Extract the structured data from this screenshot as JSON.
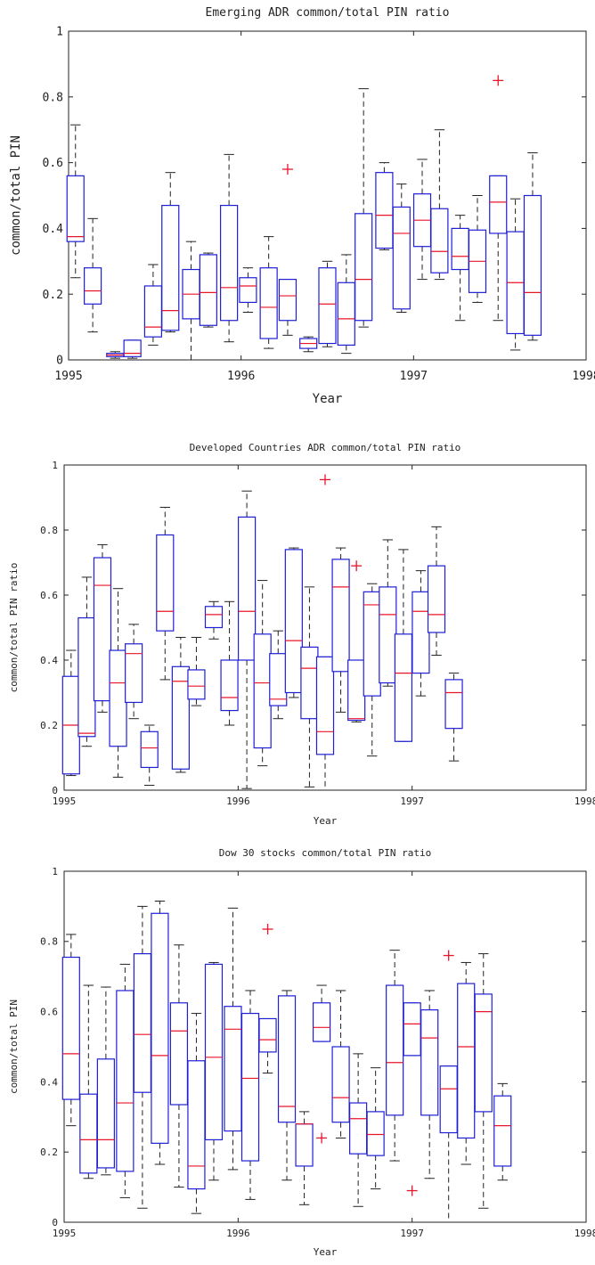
{
  "chart_data": [
    {
      "type": "box",
      "title": "Emerging ADR common/total PIN ratio",
      "xlabel": "Year",
      "ylabel": "common/total PIN",
      "xlim": [
        1995,
        1998
      ],
      "ylim": [
        0,
        1
      ],
      "x_ticks": [
        "1995",
        "1996",
        "1997",
        "1998"
      ],
      "y_ticks": [
        "0",
        "0.2",
        "0.4",
        "0.6",
        "0.8",
        "1"
      ],
      "grid": false,
      "colors": {
        "box": "#1f1fd6",
        "median": "#e8162b",
        "outlier": "#e8162b",
        "whisker": "#222222"
      },
      "boxes": [
        {
          "x": 1995.04,
          "lo": 0.25,
          "q1": 0.36,
          "med": 0.375,
          "q3": 0.56,
          "hi": 0.715
        },
        {
          "x": 1995.14,
          "lo": 0.085,
          "q1": 0.17,
          "med": 0.21,
          "q3": 0.28,
          "hi": 0.43
        },
        {
          "x": 1995.27,
          "lo": 0.005,
          "q1": 0.01,
          "med": 0.015,
          "q3": 0.02,
          "hi": 0.025
        },
        {
          "x": 1995.37,
          "lo": 0.005,
          "q1": 0.01,
          "med": 0.02,
          "q3": 0.06,
          "hi": 0.06
        },
        {
          "x": 1995.49,
          "lo": 0.045,
          "q1": 0.07,
          "med": 0.1,
          "q3": 0.225,
          "hi": 0.29
        },
        {
          "x": 1995.59,
          "lo": 0.085,
          "q1": 0.09,
          "med": 0.15,
          "q3": 0.47,
          "hi": 0.57
        },
        {
          "x": 1995.71,
          "lo": 0.0,
          "q1": 0.125,
          "med": 0.2,
          "q3": 0.275,
          "hi": 0.36
        },
        {
          "x": 1995.81,
          "lo": 0.1,
          "q1": 0.105,
          "med": 0.205,
          "q3": 0.32,
          "hi": 0.325
        },
        {
          "x": 1995.93,
          "lo": 0.055,
          "q1": 0.12,
          "med": 0.22,
          "q3": 0.47,
          "hi": 0.625
        },
        {
          "x": 1996.04,
          "lo": 0.145,
          "q1": 0.175,
          "med": 0.225,
          "q3": 0.25,
          "hi": 0.28
        },
        {
          "x": 1996.16,
          "lo": 0.035,
          "q1": 0.065,
          "med": 0.16,
          "q3": 0.28,
          "hi": 0.375
        },
        {
          "x": 1996.27,
          "lo": 0.075,
          "q1": 0.12,
          "med": 0.195,
          "q3": 0.245,
          "hi": 0.245,
          "outliers": [
            0.58
          ]
        },
        {
          "x": 1996.39,
          "lo": 0.025,
          "q1": 0.035,
          "med": 0.05,
          "q3": 0.065,
          "hi": 0.07
        },
        {
          "x": 1996.5,
          "lo": 0.04,
          "q1": 0.05,
          "med": 0.17,
          "q3": 0.28,
          "hi": 0.3
        },
        {
          "x": 1996.61,
          "lo": 0.02,
          "q1": 0.045,
          "med": 0.125,
          "q3": 0.235,
          "hi": 0.32
        },
        {
          "x": 1996.71,
          "lo": 0.1,
          "q1": 0.12,
          "med": 0.245,
          "q3": 0.445,
          "hi": 0.825
        },
        {
          "x": 1996.83,
          "lo": 0.335,
          "q1": 0.34,
          "med": 0.44,
          "q3": 0.57,
          "hi": 0.6
        },
        {
          "x": 1996.93,
          "lo": 0.145,
          "q1": 0.155,
          "med": 0.385,
          "q3": 0.465,
          "hi": 0.535
        },
        {
          "x": 1997.05,
          "lo": 0.245,
          "q1": 0.345,
          "med": 0.425,
          "q3": 0.505,
          "hi": 0.61
        },
        {
          "x": 1997.15,
          "lo": 0.245,
          "q1": 0.265,
          "med": 0.33,
          "q3": 0.46,
          "hi": 0.7
        },
        {
          "x": 1997.27,
          "lo": 0.12,
          "q1": 0.275,
          "med": 0.315,
          "q3": 0.4,
          "hi": 0.44
        },
        {
          "x": 1997.37,
          "lo": 0.175,
          "q1": 0.205,
          "med": 0.3,
          "q3": 0.395,
          "hi": 0.5
        },
        {
          "x": 1997.49,
          "lo": 0.12,
          "q1": 0.385,
          "med": 0.48,
          "q3": 0.56,
          "hi": 0.56,
          "outliers": [
            0.85
          ]
        },
        {
          "x": 1997.59,
          "lo": 0.03,
          "q1": 0.08,
          "med": 0.235,
          "q3": 0.39,
          "hi": 0.49
        },
        {
          "x": 1997.69,
          "lo": 0.06,
          "q1": 0.075,
          "med": 0.205,
          "q3": 0.5,
          "hi": 0.63
        }
      ]
    },
    {
      "type": "box",
      "title": "Developed Countries ADR common/total PIN ratio",
      "xlabel": "Year",
      "ylabel": "common/total PIN ratio",
      "xlim": [
        1995,
        1998
      ],
      "ylim": [
        0,
        1
      ],
      "x_ticks": [
        "1995",
        "1996",
        "1997",
        "1998"
      ],
      "y_ticks": [
        "0",
        "0.2",
        "0.4",
        "0.6",
        "0.8",
        "1"
      ],
      "grid": false,
      "colors": {
        "box": "#1f1fd6",
        "median": "#e8162b",
        "outlier": "#e8162b",
        "whisker": "#222222"
      },
      "boxes": [
        {
          "x": 1995.04,
          "lo": 0.045,
          "q1": 0.05,
          "med": 0.2,
          "q3": 0.35,
          "hi": 0.43
        },
        {
          "x": 1995.13,
          "lo": 0.135,
          "q1": 0.165,
          "med": 0.175,
          "q3": 0.53,
          "hi": 0.655
        },
        {
          "x": 1995.22,
          "lo": 0.24,
          "q1": 0.275,
          "med": 0.63,
          "q3": 0.715,
          "hi": 0.755
        },
        {
          "x": 1995.31,
          "lo": 0.04,
          "q1": 0.135,
          "med": 0.33,
          "q3": 0.43,
          "hi": 0.62
        },
        {
          "x": 1995.4,
          "lo": 0.22,
          "q1": 0.27,
          "med": 0.42,
          "q3": 0.45,
          "hi": 0.51
        },
        {
          "x": 1995.49,
          "lo": 0.015,
          "q1": 0.07,
          "med": 0.13,
          "q3": 0.18,
          "hi": 0.2
        },
        {
          "x": 1995.58,
          "lo": 0.34,
          "q1": 0.49,
          "med": 0.55,
          "q3": 0.785,
          "hi": 0.87
        },
        {
          "x": 1995.67,
          "lo": 0.055,
          "q1": 0.065,
          "med": 0.335,
          "q3": 0.38,
          "hi": 0.47
        },
        {
          "x": 1995.76,
          "lo": 0.26,
          "q1": 0.28,
          "med": 0.32,
          "q3": 0.37,
          "hi": 0.47
        },
        {
          "x": 1995.86,
          "lo": 0.465,
          "q1": 0.5,
          "med": 0.54,
          "q3": 0.565,
          "hi": 0.58
        },
        {
          "x": 1995.95,
          "lo": 0.2,
          "q1": 0.245,
          "med": 0.285,
          "q3": 0.4,
          "hi": 0.58
        },
        {
          "x": 1996.05,
          "lo": 0.005,
          "q1": 0.4,
          "med": 0.55,
          "q3": 0.84,
          "hi": 0.92
        },
        {
          "x": 1996.14,
          "lo": 0.075,
          "q1": 0.13,
          "med": 0.33,
          "q3": 0.48,
          "hi": 0.645
        },
        {
          "x": 1996.23,
          "lo": 0.22,
          "q1": 0.26,
          "med": 0.28,
          "q3": 0.42,
          "hi": 0.49
        },
        {
          "x": 1996.32,
          "lo": 0.285,
          "q1": 0.3,
          "med": 0.46,
          "q3": 0.74,
          "hi": 0.745
        },
        {
          "x": 1996.41,
          "lo": 0.01,
          "q1": 0.22,
          "med": 0.375,
          "q3": 0.44,
          "hi": 0.625
        },
        {
          "x": 1996.5,
          "lo": 0.0,
          "q1": 0.11,
          "med": 0.18,
          "q3": 0.41,
          "hi": 0.41,
          "outliers": [
            0.955
          ]
        },
        {
          "x": 1996.59,
          "lo": 0.24,
          "q1": 0.365,
          "med": 0.625,
          "q3": 0.71,
          "hi": 0.745
        },
        {
          "x": 1996.68,
          "lo": 0.21,
          "q1": 0.215,
          "med": 0.22,
          "q3": 0.4,
          "hi": 0.4,
          "outliers": [
            0.69
          ]
        },
        {
          "x": 1996.77,
          "lo": 0.105,
          "q1": 0.29,
          "med": 0.57,
          "q3": 0.61,
          "hi": 0.635
        },
        {
          "x": 1996.86,
          "lo": 0.32,
          "q1": 0.33,
          "med": 0.54,
          "q3": 0.625,
          "hi": 0.77
        },
        {
          "x": 1996.95,
          "lo": 0.15,
          "q1": 0.15,
          "med": 0.36,
          "q3": 0.48,
          "hi": 0.74
        },
        {
          "x": 1997.05,
          "lo": 0.29,
          "q1": 0.36,
          "med": 0.55,
          "q3": 0.61,
          "hi": 0.675
        },
        {
          "x": 1997.14,
          "lo": 0.415,
          "q1": 0.485,
          "med": 0.54,
          "q3": 0.69,
          "hi": 0.81
        },
        {
          "x": 1997.24,
          "lo": 0.09,
          "q1": 0.19,
          "med": 0.3,
          "q3": 0.34,
          "hi": 0.36
        }
      ]
    },
    {
      "type": "box",
      "title": "Dow 30 stocks common/total PIN ratio",
      "xlabel": "Year",
      "ylabel": "common/total PIN",
      "xlim": [
        1995,
        1998
      ],
      "ylim": [
        0,
        1
      ],
      "x_ticks": [
        "1995",
        "1996",
        "1997",
        "1998"
      ],
      "y_ticks": [
        "0",
        "0.2",
        "0.4",
        "0.6",
        "0.8",
        "1"
      ],
      "grid": false,
      "colors": {
        "box": "#1f1fd6",
        "median": "#e8162b",
        "outlier": "#e8162b",
        "whisker": "#222222"
      },
      "boxes": [
        {
          "x": 1995.04,
          "lo": 0.275,
          "q1": 0.35,
          "med": 0.48,
          "q3": 0.755,
          "hi": 0.82
        },
        {
          "x": 1995.14,
          "lo": 0.125,
          "q1": 0.14,
          "med": 0.235,
          "q3": 0.365,
          "hi": 0.675
        },
        {
          "x": 1995.24,
          "lo": 0.135,
          "q1": 0.155,
          "med": 0.235,
          "q3": 0.465,
          "hi": 0.67
        },
        {
          "x": 1995.35,
          "lo": 0.07,
          "q1": 0.145,
          "med": 0.34,
          "q3": 0.66,
          "hi": 0.735
        },
        {
          "x": 1995.45,
          "lo": 0.04,
          "q1": 0.37,
          "med": 0.535,
          "q3": 0.765,
          "hi": 0.9
        },
        {
          "x": 1995.55,
          "lo": 0.165,
          "q1": 0.225,
          "med": 0.475,
          "q3": 0.88,
          "hi": 0.915
        },
        {
          "x": 1995.66,
          "lo": 0.1,
          "q1": 0.335,
          "med": 0.545,
          "q3": 0.625,
          "hi": 0.79
        },
        {
          "x": 1995.76,
          "lo": 0.025,
          "q1": 0.095,
          "med": 0.16,
          "q3": 0.46,
          "hi": 0.595
        },
        {
          "x": 1995.86,
          "lo": 0.12,
          "q1": 0.235,
          "med": 0.47,
          "q3": 0.735,
          "hi": 0.74
        },
        {
          "x": 1995.97,
          "lo": 0.15,
          "q1": 0.26,
          "med": 0.55,
          "q3": 0.615,
          "hi": 0.895
        },
        {
          "x": 1996.07,
          "lo": 0.065,
          "q1": 0.175,
          "med": 0.41,
          "q3": 0.595,
          "hi": 0.66
        },
        {
          "x": 1996.17,
          "lo": 0.425,
          "q1": 0.485,
          "med": 0.52,
          "q3": 0.58,
          "hi": 0.58,
          "outliers": [
            0.835
          ]
        },
        {
          "x": 1996.28,
          "lo": 0.12,
          "q1": 0.285,
          "med": 0.33,
          "q3": 0.645,
          "hi": 0.66
        },
        {
          "x": 1996.38,
          "lo": 0.05,
          "q1": 0.16,
          "med": 0.28,
          "q3": 0.28,
          "hi": 0.315
        },
        {
          "x": 1996.48,
          "lo": 0.515,
          "q1": 0.515,
          "med": 0.555,
          "q3": 0.625,
          "hi": 0.675,
          "outliers": [
            0.24
          ]
        },
        {
          "x": 1996.59,
          "lo": 0.24,
          "q1": 0.285,
          "med": 0.355,
          "q3": 0.5,
          "hi": 0.66
        },
        {
          "x": 1996.69,
          "lo": 0.045,
          "q1": 0.195,
          "med": 0.295,
          "q3": 0.34,
          "hi": 0.48
        },
        {
          "x": 1996.79,
          "lo": 0.095,
          "q1": 0.19,
          "med": 0.25,
          "q3": 0.315,
          "hi": 0.44
        },
        {
          "x": 1996.9,
          "lo": 0.175,
          "q1": 0.305,
          "med": 0.455,
          "q3": 0.675,
          "hi": 0.775
        },
        {
          "x": 1997.0,
          "lo": 0.475,
          "q1": 0.475,
          "med": 0.565,
          "q3": 0.625,
          "hi": 0.625,
          "outliers": [
            0.09
          ]
        },
        {
          "x": 1997.1,
          "lo": 0.125,
          "q1": 0.305,
          "med": 0.525,
          "q3": 0.605,
          "hi": 0.66
        },
        {
          "x": 1997.21,
          "lo": 0.0,
          "q1": 0.255,
          "med": 0.38,
          "q3": 0.445,
          "hi": 0.445,
          "outliers": [
            0.76
          ]
        },
        {
          "x": 1997.31,
          "lo": 0.165,
          "q1": 0.24,
          "med": 0.5,
          "q3": 0.68,
          "hi": 0.74
        },
        {
          "x": 1997.41,
          "lo": 0.04,
          "q1": 0.315,
          "med": 0.6,
          "q3": 0.65,
          "hi": 0.765
        },
        {
          "x": 1997.52,
          "lo": 0.12,
          "q1": 0.16,
          "med": 0.275,
          "q3": 0.36,
          "hi": 0.395
        }
      ]
    }
  ]
}
